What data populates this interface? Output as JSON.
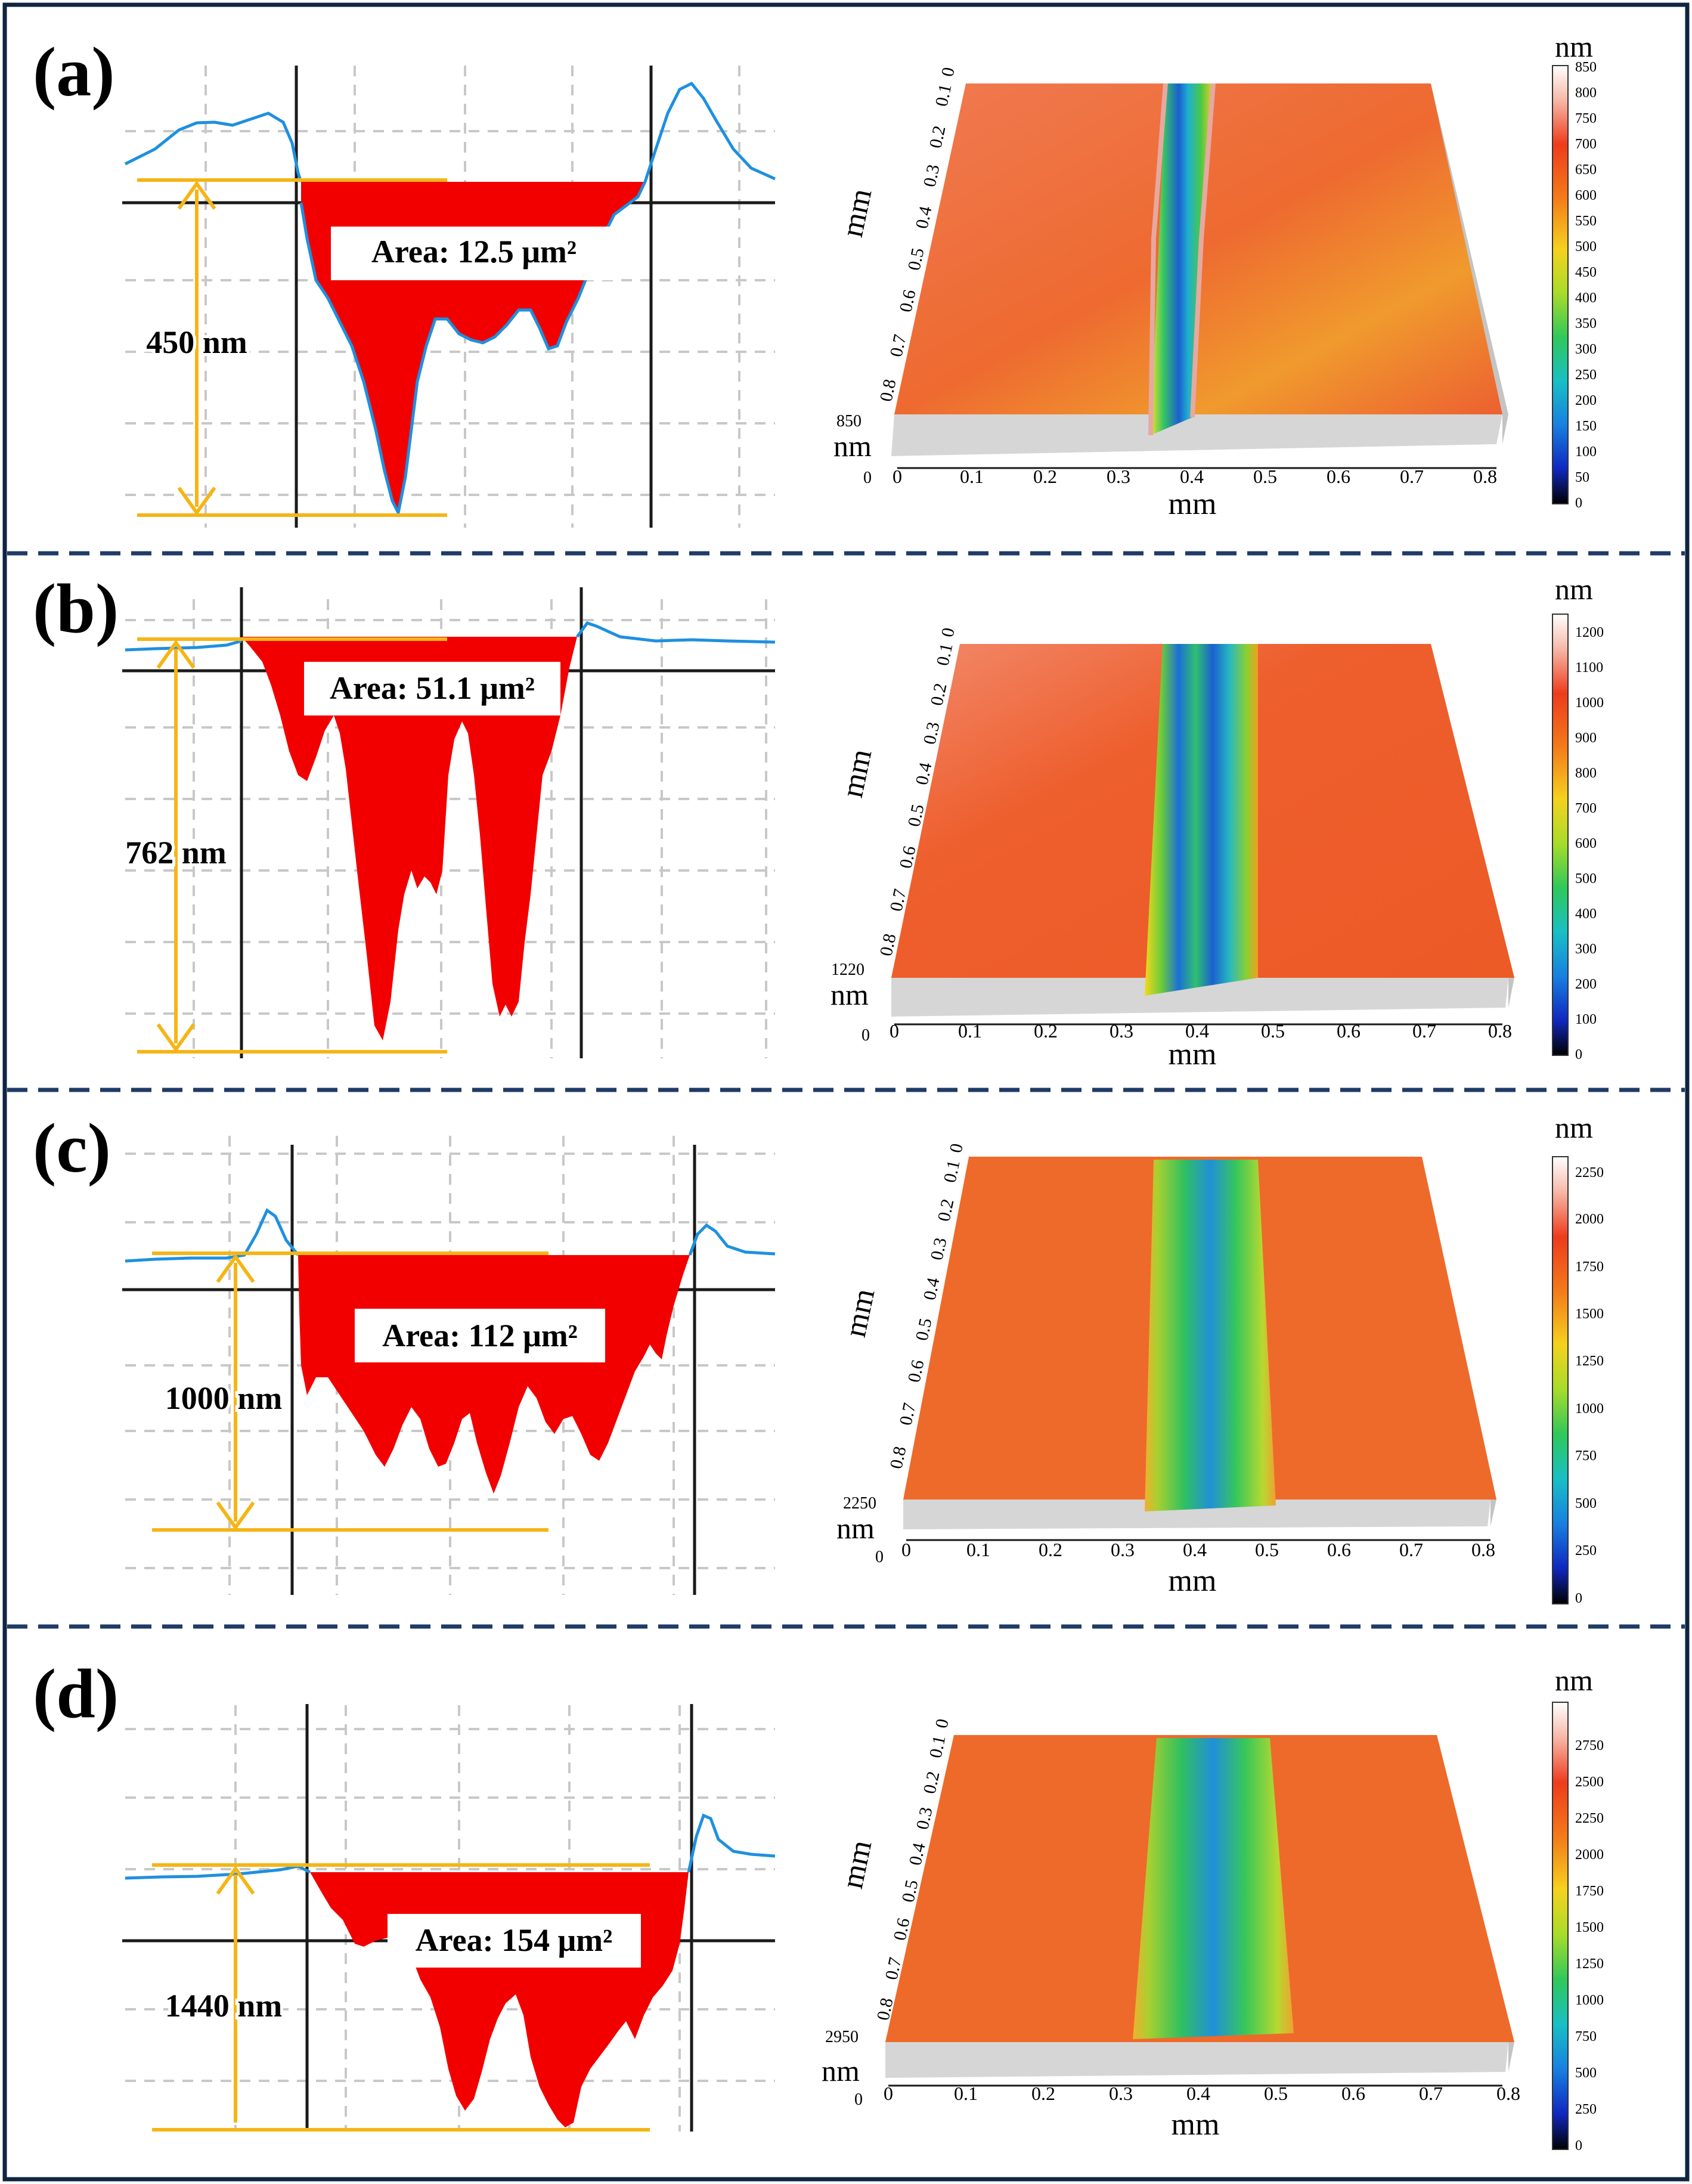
{
  "figure": {
    "panels": [
      {
        "label": "(a)",
        "area_label": "Area: 12.5 μm²",
        "depth_label": "450 nm",
        "depth_nm": 450,
        "area_um2": 12.5,
        "map": {
          "x_label": "mm",
          "y_label": "mm",
          "z_top_label": "850",
          "z_unit_label": "nm",
          "z_zero_label": "0",
          "x_ticks": [
            "0.1",
            "0.2",
            "0.3",
            "0.4",
            "0.5",
            "0.6",
            "0.7",
            "0.8"
          ],
          "y_ticks": [
            "0",
            "0.1",
            "0.2",
            "0.3",
            "0.4",
            "0.5",
            "0.6",
            "0.7",
            "0.8"
          ],
          "x_origin_label": "0",
          "groove_center_mm": 0.38,
          "groove_width_mm": 0.07
        },
        "colorbar": {
          "unit": "nm",
          "ticks": [
            "850",
            "800",
            "750",
            "700",
            "650",
            "600",
            "550",
            "500",
            "450",
            "400",
            "350",
            "300",
            "250",
            "200",
            "150",
            "100",
            "50",
            "0"
          ]
        }
      },
      {
        "label": "(b)",
        "area_label": "Area: 51.1 μm²",
        "depth_label": "762 nm",
        "depth_nm": 762,
        "area_um2": 51.1,
        "map": {
          "x_label": "mm",
          "y_label": "mm",
          "z_top_label": "1220",
          "z_unit_label": "nm",
          "z_zero_label": "0",
          "x_ticks": [
            "0.1",
            "0.2",
            "0.3",
            "0.4",
            "0.5",
            "0.6",
            "0.7",
            "0.8"
          ],
          "y_ticks": [
            "0",
            "0.1",
            "0.2",
            "0.3",
            "0.4",
            "0.5",
            "0.6",
            "0.7",
            "0.8"
          ],
          "x_origin_label": "0",
          "groove_center_mm": 0.41,
          "groove_width_mm": 0.13
        },
        "colorbar": {
          "unit": "nm",
          "ticks": [
            "1200",
            "1100",
            "1000",
            "900",
            "800",
            "700",
            "600",
            "500",
            "400",
            "300",
            "200",
            "100",
            "0"
          ]
        }
      },
      {
        "label": "(c)",
        "area_label": "Area: 112 μm²",
        "depth_label": "1000 nm",
        "depth_nm": 1000,
        "area_um2": 112,
        "map": {
          "x_label": "mm",
          "y_label": "mm",
          "z_top_label": "2250",
          "z_unit_label": "nm",
          "z_zero_label": "0",
          "x_ticks": [
            "0.1",
            "0.2",
            "0.3",
            "0.4",
            "0.5",
            "0.6",
            "0.7",
            "0.8"
          ],
          "y_ticks": [
            "0",
            "0.1",
            "0.2",
            "0.3",
            "0.4",
            "0.5",
            "0.6",
            "0.7",
            "0.8"
          ],
          "x_origin_label": "0",
          "groove_center_mm": 0.41,
          "groove_width_mm": 0.17
        },
        "colorbar": {
          "unit": "nm",
          "ticks": [
            "2250",
            "2000",
            "1750",
            "1500",
            "1250",
            "1000",
            "750",
            "500",
            "250",
            "0"
          ]
        }
      },
      {
        "label": "(d)",
        "area_label": "Area: 154 μm²",
        "depth_label": "1440 nm",
        "depth_nm": 1440,
        "area_um2": 154,
        "map": {
          "x_label": "mm",
          "y_label": "mm",
          "z_top_label": "2950",
          "z_unit_label": "nm",
          "z_zero_label": "0",
          "x_ticks": [
            "0.1",
            "0.2",
            "0.3",
            "0.4",
            "0.5",
            "0.6",
            "0.7",
            "0.8"
          ],
          "y_ticks": [
            "0",
            "0.1",
            "0.2",
            "0.3",
            "0.4",
            "0.5",
            "0.6",
            "0.7",
            "0.8"
          ],
          "x_origin_label": "0",
          "groove_center_mm": 0.41,
          "groove_width_mm": 0.18
        },
        "colorbar": {
          "unit": "nm",
          "ticks": [
            "2750",
            "2500",
            "2250",
            "2000",
            "1750",
            "1500",
            "1250",
            "1000",
            "750",
            "500",
            "250",
            "0"
          ]
        }
      }
    ]
  },
  "colors": {
    "border": "#0f2440",
    "divider": "#1f3b66",
    "profile_fill": "#f20000",
    "profile_line": "#1e90e0",
    "guide_line": "#f5b516",
    "grid": "#c8c8c8",
    "axis": "#1a1a1a",
    "surface": "#ee5c28",
    "surface_light": "#f6906a",
    "side": "#d6d6d6"
  }
}
